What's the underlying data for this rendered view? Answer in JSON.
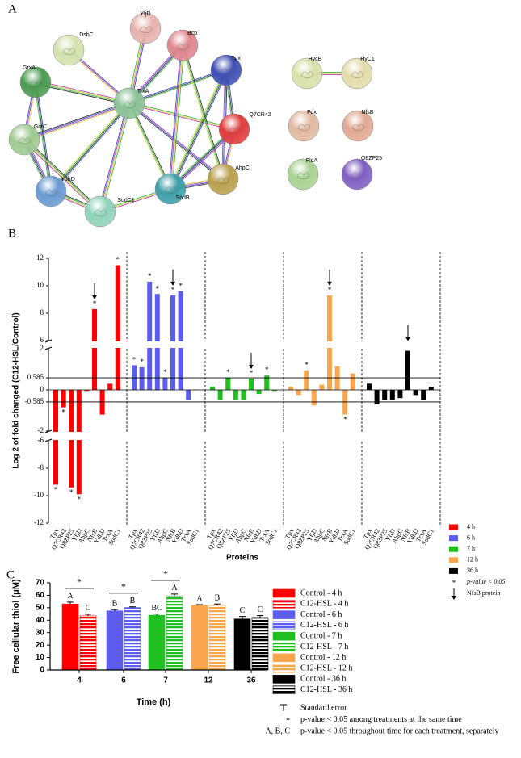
{
  "panels": {
    "a": "A",
    "b": "B",
    "c": "C"
  },
  "network": {
    "nodes": [
      {
        "label": "YfjD",
        "color": "#e6b2ae"
      },
      {
        "label": "DsbC",
        "color": "#d3e2ad"
      },
      {
        "label": "Bcp",
        "color": "#de8690"
      },
      {
        "label": "Tpx",
        "color": "#3f4fb3"
      },
      {
        "label": "GrxA",
        "color": "#4b9b52"
      },
      {
        "label": "TrxA",
        "color": "#8dc396"
      },
      {
        "label": "Q7CR42",
        "color": "#e03c3c"
      },
      {
        "label": "GrxC",
        "color": "#a0cb92"
      },
      {
        "label": "AhpC",
        "color": "#b9a04e"
      },
      {
        "label": "YdhD",
        "color": "#6a9bd2"
      },
      {
        "label": "SodB",
        "color": "#3e9fa9"
      },
      {
        "label": "SodC1",
        "color": "#8fd3bb"
      },
      {
        "label": "HycB",
        "color": "#d9e1aa"
      },
      {
        "label": "HyC1",
        "color": "#e3dbab"
      },
      {
        "label": "Fdx",
        "color": "#e2b9a1"
      },
      {
        "label": "NfsB",
        "color": "#e2a993"
      },
      {
        "label": "FldA",
        "color": "#a9d293"
      },
      {
        "label": "Q8ZP25",
        "color": "#7f5fc2"
      }
    ]
  },
  "chart_data": [
    {
      "type": "bar",
      "y_label": "Log 2 of fold changed (C12-HSL/Control)",
      "x_label": "Proteins",
      "categories": [
        "Tpx",
        "Q7CR42",
        "Q8ZP25",
        "YfjD",
        "AhpC",
        "NfsB",
        "YdhD",
        "TrxA",
        "SodC1"
      ],
      "series": [
        {
          "name": "4 h",
          "color": "#ff0000",
          "values": [
            -9.2,
            -0.85,
            -9.4,
            -9.9,
            -0.05,
            8.3,
            -1.2,
            0.3,
            11.5
          ],
          "markers": [
            "*",
            "*",
            "*",
            "*",
            null,
            "*",
            null,
            null,
            "*"
          ]
        },
        {
          "name": "6 h",
          "color": "#5c5cf0",
          "values": [
            1.2,
            1.1,
            10.3,
            9.4,
            0.6,
            9.3,
            9.6,
            -0.5,
            0.02
          ],
          "markers": [
            "*",
            "*",
            "*",
            "*",
            "*",
            "*",
            "*",
            null,
            null
          ]
        },
        {
          "name": "7 h",
          "color": "#1fc01f",
          "values": [
            0.15,
            -0.5,
            0.6,
            -0.5,
            -0.5,
            0.55,
            -0.2,
            0.7,
            -0.05
          ],
          "markers": [
            null,
            null,
            "*",
            null,
            null,
            "*",
            null,
            "*",
            null
          ]
        },
        {
          "name": "12 h",
          "color": "#f8a54d",
          "values": [
            0.15,
            -0.25,
            0.95,
            -0.75,
            0.25,
            9.3,
            1.15,
            -1.2,
            0.8
          ],
          "markers": [
            null,
            null,
            "*",
            null,
            null,
            "*",
            null,
            "*",
            null
          ]
        },
        {
          "name": "36 h",
          "color": "#000000",
          "values": [
            0.3,
            -0.7,
            -0.5,
            -0.5,
            -0.4,
            1.9,
            -0.25,
            -0.5,
            0.15
          ],
          "markers": [
            null,
            null,
            null,
            null,
            null,
            "*",
            null,
            null,
            null
          ]
        }
      ],
      "ylim": [
        -12,
        12
      ],
      "y_segments": [
        [
          -12,
          -6
        ],
        [
          -2,
          2
        ],
        [
          6,
          12
        ]
      ],
      "yticks": [
        -12,
        -10,
        -8,
        -6,
        -2,
        -0.585,
        0,
        0.585,
        2,
        6,
        8,
        10,
        12
      ],
      "reference_lines": [
        -0.585,
        0,
        0.585
      ],
      "marker_legend": {
        "symbol": "*",
        "label": "p-value < 0.05"
      },
      "arrow_legend": "NfsB protein",
      "arrow_category": "NfsB"
    },
    {
      "type": "bar",
      "y_label": "Free cellular thiol (μM)",
      "x_label": "Time (h)",
      "categories": [
        "4",
        "6",
        "7",
        "12",
        "36"
      ],
      "series": [
        {
          "name": "Control - 4 h",
          "color": "#ff0000",
          "pattern": "solid",
          "values": [
            53,
            null,
            null,
            null,
            null
          ],
          "errors": [
            1.5,
            null,
            null,
            null,
            null
          ],
          "letters": [
            "A",
            null,
            null,
            null,
            null
          ]
        },
        {
          "name": "C12-HSL - 4 h",
          "color": "#ff0000",
          "pattern": "striped",
          "values": [
            43.5,
            null,
            null,
            null,
            null
          ],
          "errors": [
            1.3,
            null,
            null,
            null,
            null
          ],
          "letters": [
            "C",
            null,
            null,
            null,
            null
          ]
        },
        {
          "name": "Control - 6 h",
          "color": "#5c5cf0",
          "pattern": "solid",
          "values": [
            null,
            47.5,
            null,
            null,
            null
          ],
          "errors": [
            null,
            1,
            null,
            null,
            null
          ],
          "letters": [
            null,
            "B",
            null,
            null,
            null
          ]
        },
        {
          "name": "C12-HSL - 6 h",
          "color": "#5c5cf0",
          "pattern": "striped",
          "values": [
            null,
            50.2,
            null,
            null,
            null
          ],
          "errors": [
            null,
            0.5,
            null,
            null,
            null
          ],
          "letters": [
            null,
            "B",
            null,
            null,
            null
          ]
        },
        {
          "name": "Control - 7 h",
          "color": "#1fc01f",
          "pattern": "solid",
          "values": [
            null,
            null,
            44,
            null,
            null
          ],
          "errors": [
            null,
            null,
            1,
            null,
            null
          ],
          "letters": [
            null,
            null,
            "BC",
            null,
            null
          ]
        },
        {
          "name": "C12-HSL - 7 h",
          "color": "#1fc01f",
          "pattern": "striped",
          "values": [
            null,
            null,
            59.5,
            null,
            null
          ],
          "errors": [
            null,
            null,
            1.5,
            null,
            null
          ],
          "letters": [
            null,
            null,
            "A",
            null,
            null
          ]
        },
        {
          "name": "Control - 12 h",
          "color": "#f8a54d",
          "pattern": "solid",
          "values": [
            null,
            null,
            null,
            52,
            null
          ],
          "errors": [
            null,
            null,
            null,
            0.5,
            null
          ],
          "letters": [
            null,
            null,
            null,
            "A",
            null
          ]
        },
        {
          "name": "C12-HSL - 12 h",
          "color": "#f8a54d",
          "pattern": "striped",
          "values": [
            null,
            null,
            null,
            52,
            null
          ],
          "errors": [
            null,
            null,
            null,
            1,
            null
          ],
          "letters": [
            null,
            null,
            null,
            "B",
            null
          ]
        },
        {
          "name": "Control - 36 h",
          "color": "#000000",
          "pattern": "solid",
          "values": [
            null,
            null,
            null,
            null,
            41
          ],
          "errors": [
            null,
            null,
            null,
            null,
            2
          ],
          "letters": [
            null,
            null,
            null,
            null,
            "C"
          ]
        },
        {
          "name": "C12-HSL - 36 h",
          "color": "#000000",
          "pattern": "striped",
          "values": [
            null,
            null,
            null,
            null,
            42.2
          ],
          "errors": [
            null,
            null,
            null,
            null,
            1.5
          ],
          "letters": [
            null,
            null,
            null,
            null,
            "C"
          ]
        }
      ],
      "ylim": [
        0,
        70
      ],
      "yticks": [
        0,
        10,
        20,
        30,
        40,
        50,
        60,
        70
      ],
      "significance": [
        "*",
        "*",
        "*",
        null,
        null
      ],
      "legend_notes": [
        {
          "label": "Standard error"
        },
        {
          "symbol": "*",
          "label": "p-value < 0.05 among treatments at the same time"
        },
        {
          "symbol": "A, B, C",
          "label": "p-value < 0.05 throughout time for each treatment, separately"
        }
      ]
    }
  ]
}
